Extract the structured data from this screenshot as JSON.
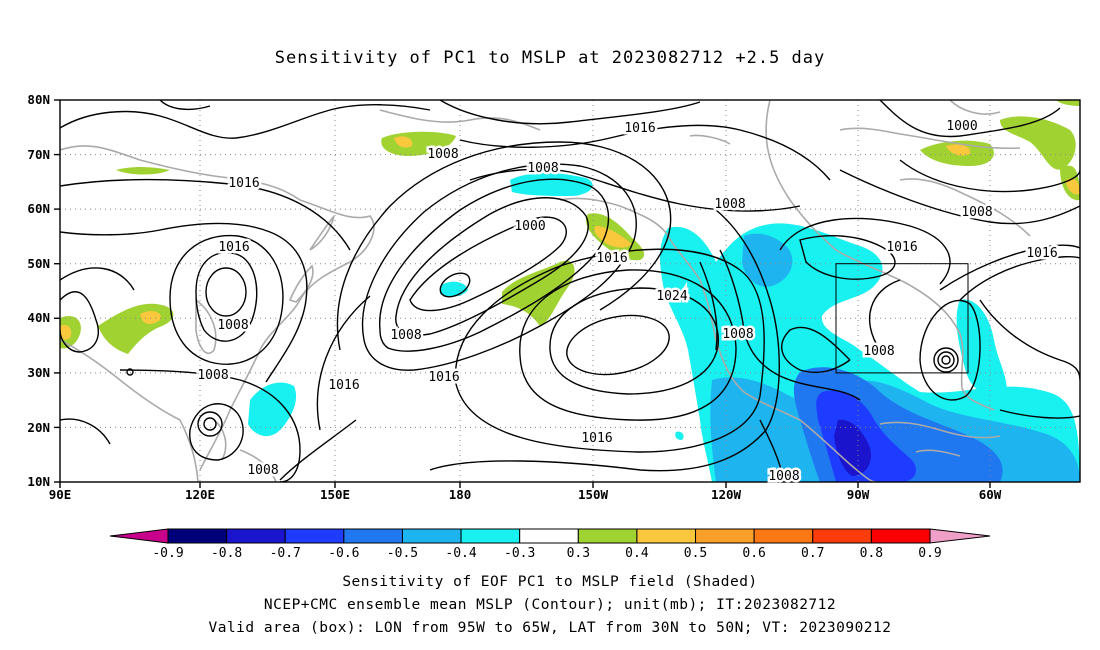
{
  "title": "Sensitivity of PC1 to MSLP at 2023082712 +2.5 day",
  "map": {
    "lat_labels": [
      "80N",
      "70N",
      "60N",
      "50N",
      "40N",
      "30N",
      "20N",
      "10N"
    ],
    "lon_labels": [
      "90E",
      "120E",
      "150E",
      "180",
      "150W",
      "120W",
      "90W",
      "60W"
    ],
    "contour_labels": [
      {
        "id": "c1",
        "text": "1016"
      },
      {
        "id": "c2",
        "text": "1008"
      },
      {
        "id": "c3",
        "text": "1016"
      },
      {
        "id": "c4",
        "text": "1008"
      },
      {
        "id": "c5",
        "text": "1016"
      },
      {
        "id": "c6",
        "text": "1000"
      },
      {
        "id": "c7",
        "text": "1008"
      },
      {
        "id": "c8",
        "text": "1016"
      },
      {
        "id": "c9",
        "text": "1008"
      },
      {
        "id": "c10",
        "text": "1016"
      },
      {
        "id": "c11",
        "text": "1024"
      },
      {
        "id": "c12",
        "text": "1008"
      },
      {
        "id": "c13",
        "text": "1016"
      },
      {
        "id": "c14",
        "text": "1008"
      },
      {
        "id": "c15",
        "text": "1016"
      },
      {
        "id": "c16",
        "text": "1008"
      },
      {
        "id": "c17",
        "text": "1008"
      },
      {
        "id": "c18",
        "text": "1000"
      },
      {
        "id": "c19",
        "text": "1008"
      },
      {
        "id": "c20",
        "text": "1016"
      },
      {
        "id": "c21",
        "text": "1008"
      },
      {
        "id": "c22",
        "text": "1016"
      }
    ],
    "valid_box": {
      "lon": [
        "95W",
        "65W"
      ],
      "lat": [
        "30N",
        "50N"
      ]
    }
  },
  "colorbar": {
    "labels": [
      "-0.9",
      "-0.8",
      "-0.7",
      "-0.6",
      "-0.5",
      "-0.4",
      "-0.3",
      "0.3",
      "0.4",
      "0.5",
      "0.6",
      "0.7",
      "0.8",
      "0.9"
    ],
    "colors": [
      "#00007a",
      "#1a14cc",
      "#1e3cff",
      "#1f78f0",
      "#1eb4f0",
      "#19f0f0",
      "#ffffff",
      "#a0d232",
      "#fac83c",
      "#faa028",
      "#fa7814",
      "#fa3c0a",
      "#fa0000"
    ],
    "end_low": "#c8008c",
    "end_high": "#f0a0c8"
  },
  "captions": {
    "line1": "Sensitivity of EOF PC1 to MSLP field (Shaded)",
    "line2": "NCEP+CMC ensemble mean MSLP (Contour); unit(mb); IT:2023082712",
    "line3": "Valid area (box): LON from 95W to 65W, LAT from 30N to 50N; VT: 2023090212"
  }
}
